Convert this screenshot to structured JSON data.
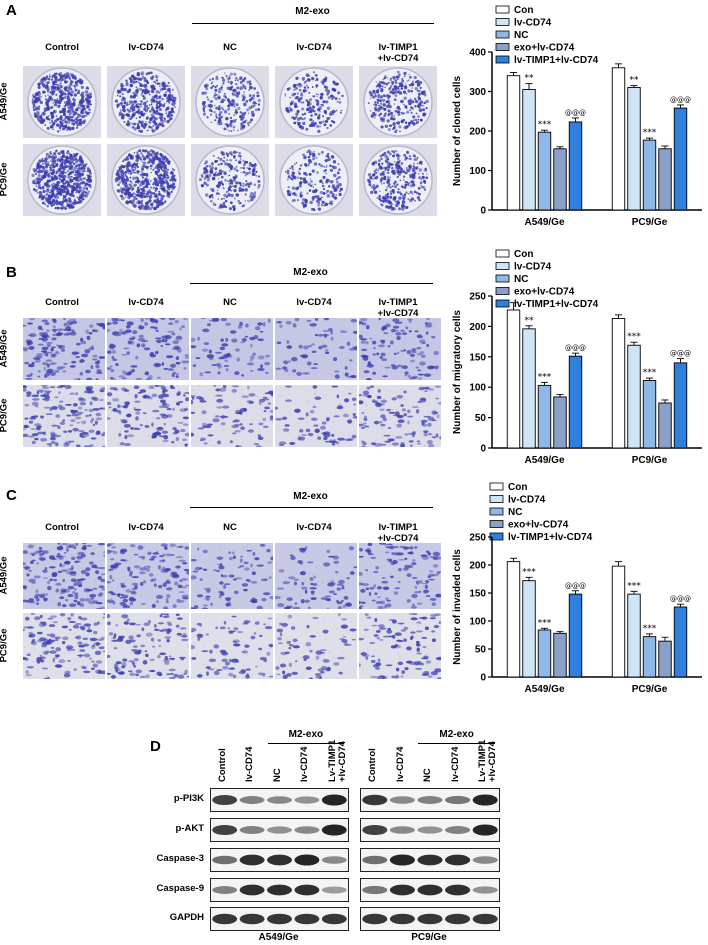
{
  "panels": {
    "A": {
      "letter": "A",
      "group": "M2-exo",
      "columns": [
        "Control",
        "lv-CD74",
        "NC",
        "lv-CD74",
        "lv-TIMP1\n+lv-CD74"
      ],
      "rows": [
        "A549/Ge",
        "PC9/Ge"
      ]
    },
    "B": {
      "letter": "B",
      "group": "M2-exo",
      "columns": [
        "Control",
        "lv-CD74",
        "NC",
        "lv-CD74",
        "lv-TIMP1\n+lv-CD74"
      ],
      "rows": [
        "A549/Ge",
        "PC9/Ge"
      ]
    },
    "C": {
      "letter": "C",
      "group": "M2-exo",
      "columns": [
        "Control",
        "lv-CD74",
        "NC",
        "lv-CD74",
        "lv-TIMP1\n+lv-CD74"
      ],
      "rows": [
        "A549/Ge",
        "PC9/Ge"
      ]
    },
    "D": {
      "letter": "D",
      "group": "M2-exo",
      "lanes": [
        "Control",
        "lv-CD74",
        "NC",
        "lv-CD74",
        "Lv-TIMP1\n+lv-CD74"
      ],
      "proteins": [
        "p-PI3K",
        "p-AKT",
        "Caspase-3",
        "Caspase-9",
        "GAPDH"
      ],
      "blots": [
        "A549/Ge",
        "PC9/Ge"
      ],
      "band_intensity": {
        "A549/Ge": {
          "p-PI3K": [
            0.8,
            0.45,
            0.4,
            0.35,
            0.95
          ],
          "p-AKT": [
            0.8,
            0.45,
            0.35,
            0.4,
            0.95
          ],
          "Caspase-3": [
            0.55,
            0.9,
            0.9,
            0.95,
            0.4
          ],
          "Caspase-9": [
            0.45,
            0.9,
            0.9,
            0.9,
            0.3
          ],
          "GAPDH": [
            0.85,
            0.85,
            0.85,
            0.85,
            0.85
          ]
        },
        "PC9/Ge": {
          "p-PI3K": [
            0.85,
            0.4,
            0.45,
            0.5,
            0.95
          ],
          "p-AKT": [
            0.8,
            0.4,
            0.35,
            0.45,
            0.95
          ],
          "Caspase-3": [
            0.55,
            0.95,
            0.9,
            0.9,
            0.4
          ],
          "Caspase-9": [
            0.5,
            0.9,
            0.9,
            0.9,
            0.35
          ],
          "GAPDH": [
            0.85,
            0.85,
            0.85,
            0.85,
            0.85
          ]
        }
      }
    }
  },
  "colors": {
    "Con": "#ffffff",
    "lv-CD74": "#cfe4f7",
    "NC": "#8fb8e8",
    "exo+lv-CD74": "#8aa0c8",
    "lv-TIMP1+lv-CD74": "#2f7fdc",
    "stain": "#3d3fb0"
  },
  "chart_data": [
    {
      "type": "bar",
      "ylabel": "Number of cloned cells",
      "categories": [
        "A549/Ge",
        "PC9/Ge"
      ],
      "ylim": [
        0,
        400
      ],
      "yticks": [
        "0",
        "100",
        "200",
        "300",
        "400"
      ],
      "legend_position": "top-right",
      "series": [
        {
          "name": "Con",
          "values": [
            340,
            360
          ],
          "errors": [
            8,
            10
          ],
          "annotations": [
            "",
            ""
          ]
        },
        {
          "name": "lv-CD74",
          "values": [
            305,
            310
          ],
          "errors": [
            15,
            5
          ],
          "annotations": [
            "**",
            "**"
          ]
        },
        {
          "name": "NC",
          "values": [
            197,
            177
          ],
          "errors": [
            5,
            5
          ],
          "annotations": [
            "***",
            "***"
          ]
        },
        {
          "name": "exo+lv-CD74",
          "values": [
            155,
            155
          ],
          "errors": [
            5,
            7
          ],
          "annotations": [
            "",
            ""
          ]
        },
        {
          "name": "lv-TIMP1+lv-CD74",
          "values": [
            223,
            258
          ],
          "errors": [
            10,
            8
          ],
          "annotations": [
            "@@@",
            "@@@"
          ]
        }
      ]
    },
    {
      "type": "bar",
      "ylabel": "Number of migratory cells",
      "categories": [
        "A549/Ge",
        "PC9/Ge"
      ],
      "ylim": [
        0,
        250
      ],
      "yticks": [
        "0",
        "50",
        "100",
        "150",
        "200",
        "250"
      ],
      "legend_position": "top-right",
      "series": [
        {
          "name": "Con",
          "values": [
            227,
            213
          ],
          "errors": [
            12,
            6
          ],
          "annotations": [
            "",
            ""
          ]
        },
        {
          "name": "lv-CD74",
          "values": [
            196,
            169
          ],
          "errors": [
            5,
            5
          ],
          "annotations": [
            "**",
            "***"
          ]
        },
        {
          "name": "NC",
          "values": [
            103,
            111
          ],
          "errors": [
            5,
            4
          ],
          "annotations": [
            "***",
            "***"
          ]
        },
        {
          "name": "exo+lv-CD74",
          "values": [
            84,
            74
          ],
          "errors": [
            4,
            5
          ],
          "annotations": [
            "",
            ""
          ]
        },
        {
          "name": "lv-TIMP1+lv-CD74",
          "values": [
            151,
            140
          ],
          "errors": [
            5,
            7
          ],
          "annotations": [
            "@@@",
            "@@@"
          ]
        }
      ]
    },
    {
      "type": "bar",
      "ylabel": "Number of invaded cells",
      "categories": [
        "A549/Ge",
        "PC9/Ge"
      ],
      "ylim": [
        0,
        250
      ],
      "yticks": [
        "0",
        "50",
        "100",
        "150",
        "200",
        "250"
      ],
      "legend_position": "top-right",
      "series": [
        {
          "name": "Con",
          "values": [
            206,
            198
          ],
          "errors": [
            6,
            8
          ],
          "annotations": [
            "",
            ""
          ]
        },
        {
          "name": "lv-CD74",
          "values": [
            172,
            148
          ],
          "errors": [
            6,
            5
          ],
          "annotations": [
            "***",
            "***"
          ]
        },
        {
          "name": "NC",
          "values": [
            84,
            72
          ],
          "errors": [
            3,
            5
          ],
          "annotations": [
            "***",
            "***"
          ]
        },
        {
          "name": "exo+lv-CD74",
          "values": [
            78,
            64
          ],
          "errors": [
            3,
            7
          ],
          "annotations": [
            "",
            ""
          ]
        },
        {
          "name": "lv-TIMP1+lv-CD74",
          "values": [
            148,
            125
          ],
          "errors": [
            6,
            5
          ],
          "annotations": [
            "@@@",
            "@@@"
          ]
        }
      ]
    }
  ]
}
